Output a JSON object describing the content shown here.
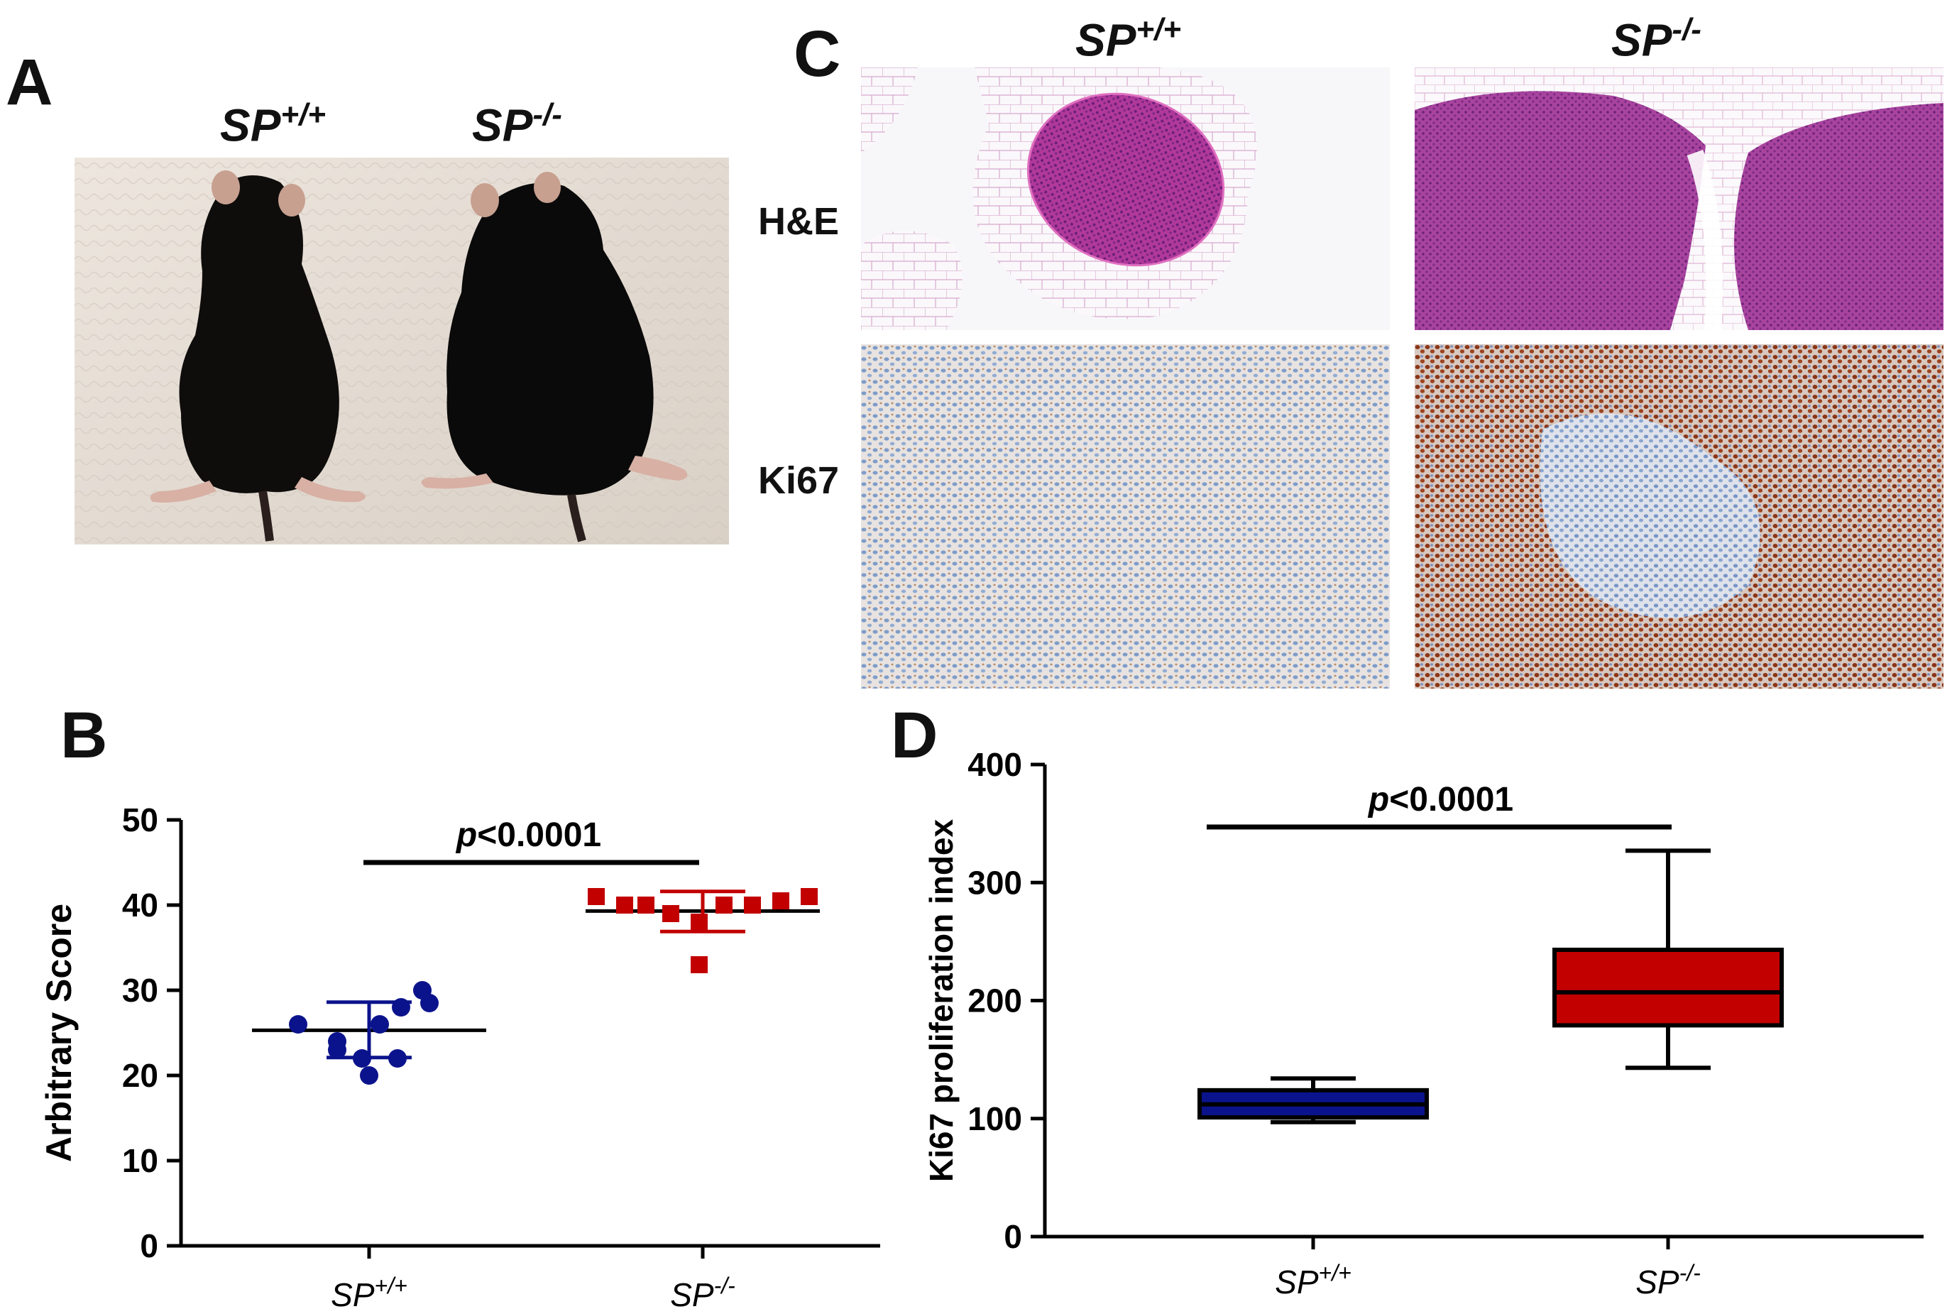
{
  "panels": {
    "A": {
      "label": "A",
      "genotypes": [
        {
          "base": "SP",
          "sup": "+/+"
        },
        {
          "base": "SP",
          "sup": "-/-"
        }
      ]
    },
    "C": {
      "label": "C",
      "genotypes": [
        {
          "base": "SP",
          "sup": "+/+"
        },
        {
          "base": "SP",
          "sup": "-/-"
        }
      ],
      "rows": [
        "H&E",
        "Ki67"
      ]
    },
    "B": {
      "label": "B"
    },
    "D": {
      "label": "D"
    }
  },
  "colors": {
    "wt": "#0b138c",
    "ko": "#c20000",
    "axis": "#000000",
    "he_pink": "#c04a9c",
    "he_bg": "#f3eef4",
    "ki_blue": "#8fa8cf",
    "ki_brown": "#8a3a1c"
  },
  "chart_data": [
    {
      "type": "scatter",
      "panel": "B",
      "ylabel": "Arbitrary Score",
      "ylim": [
        0,
        50
      ],
      "yticks": [
        "0",
        "10",
        "20",
        "30",
        "40",
        "50"
      ],
      "categories": [
        {
          "base": "SP",
          "sup": "+/+"
        },
        {
          "base": "SP",
          "sup": "-/-"
        }
      ],
      "annotation": {
        "p": "p",
        "rest": "<0.0001"
      },
      "series": [
        {
          "marker": "circle",
          "values": [
            26,
            24,
            28,
            30,
            28.5,
            26,
            23,
            22,
            22,
            20
          ],
          "mean": 25.3,
          "sd": [
            22.1,
            28.6
          ]
        },
        {
          "marker": "square",
          "values": [
            41,
            40,
            40,
            39,
            38,
            40,
            40,
            40.5,
            41,
            33
          ],
          "mean": 39.3,
          "sd": [
            36.9,
            41.6
          ]
        }
      ]
    },
    {
      "type": "box",
      "panel": "D",
      "ylabel": "Ki67 proliferation index",
      "ylim": [
        0,
        400
      ],
      "yticks": [
        "0",
        "100",
        "200",
        "300",
        "400"
      ],
      "categories": [
        {
          "base": "SP",
          "sup": "+/+"
        },
        {
          "base": "SP",
          "sup": "-/-"
        }
      ],
      "annotation": {
        "p": "p",
        "rest": "<0.0001"
      },
      "boxes": [
        {
          "min": 97,
          "q1": 101,
          "median": 112,
          "q3": 124,
          "max": 134
        },
        {
          "min": 143,
          "q1": 179,
          "median": 207,
          "q3": 243,
          "max": 327
        }
      ]
    }
  ]
}
